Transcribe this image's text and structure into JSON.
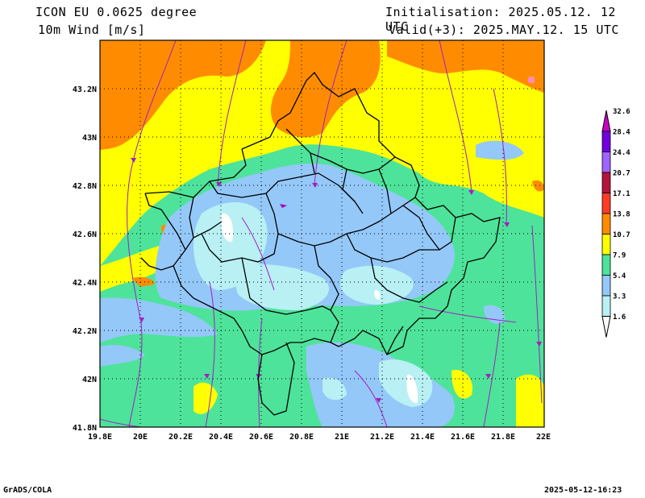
{
  "header": {
    "model": "ICON EU 0.0625 degree",
    "field": "10m Wind [m/s]",
    "init": "Initialisation: 2025.05.12. 12 UTC",
    "valid": "Valid(+3): 2025.MAY.12. 15 UTC"
  },
  "map": {
    "lon_labels": [
      "19.8E",
      "20E",
      "20.2E",
      "20.4E",
      "20.6E",
      "20.8E",
      "21E",
      "21.2E",
      "21.4E",
      "21.6E",
      "21.8E",
      "22E"
    ],
    "lat_labels": [
      "43.2N",
      "43N",
      "42.8N",
      "42.6N",
      "42.4N",
      "42.2N",
      "42N",
      "41.8N"
    ]
  },
  "colorbar": {
    "labels": [
      "1.6",
      "3.3",
      "5.4",
      "7.9",
      "10.7",
      "13.8",
      "17.1",
      "20.7",
      "24.4",
      "28.4",
      "32.6"
    ],
    "colors": [
      "#ffffff",
      "#b8f0f4",
      "#94c8f8",
      "#4ee39a",
      "#ffff00",
      "#ff8c00",
      "#ff3c28",
      "#b4143c",
      "#a064ff",
      "#7000e0",
      "#c800c8"
    ]
  },
  "footer": {
    "left": "GrADS/COLA",
    "right": "2025-05-12-16:23"
  }
}
